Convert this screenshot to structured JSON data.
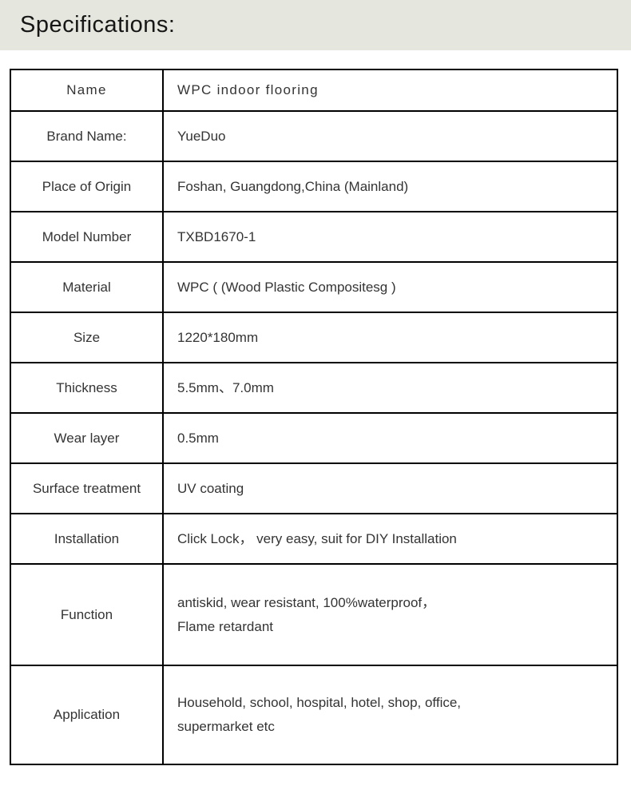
{
  "header": {
    "title": "Specifications:"
  },
  "table": {
    "rows": [
      {
        "label": "Name",
        "value": "WPC indoor flooring"
      },
      {
        "label": "Brand Name:",
        "value": "YueDuo"
      },
      {
        "label": "Place of Origin",
        "value": "Foshan, Guangdong,China (Mainland)"
      },
      {
        "label": "Model Number",
        "value": "TXBD1670-1"
      },
      {
        "label": "Material",
        "value": "WPC ( (Wood Plastic Compositesg )"
      },
      {
        "label": "Size",
        "value": "1220*180mm"
      },
      {
        "label": "Thickness",
        "value": "5.5mm、7.0mm"
      },
      {
        "label": "Wear layer",
        "value": "0.5mm"
      },
      {
        "label": "Surface treatment",
        "value": "UV coating"
      },
      {
        "label": "Installation",
        "value": "Click Lock， very easy, suit for DIY Installation"
      },
      {
        "label": "Function",
        "value": "antiskid, wear resistant, 100%waterproof，\nFlame retardant"
      },
      {
        "label": "Application",
        "value": "Household, school, hospital, hotel, shop, office,\nsupermarket etc"
      }
    ]
  },
  "colors": {
    "header_bg": "#e5e6dd",
    "border": "#000000",
    "text": "#343434"
  }
}
